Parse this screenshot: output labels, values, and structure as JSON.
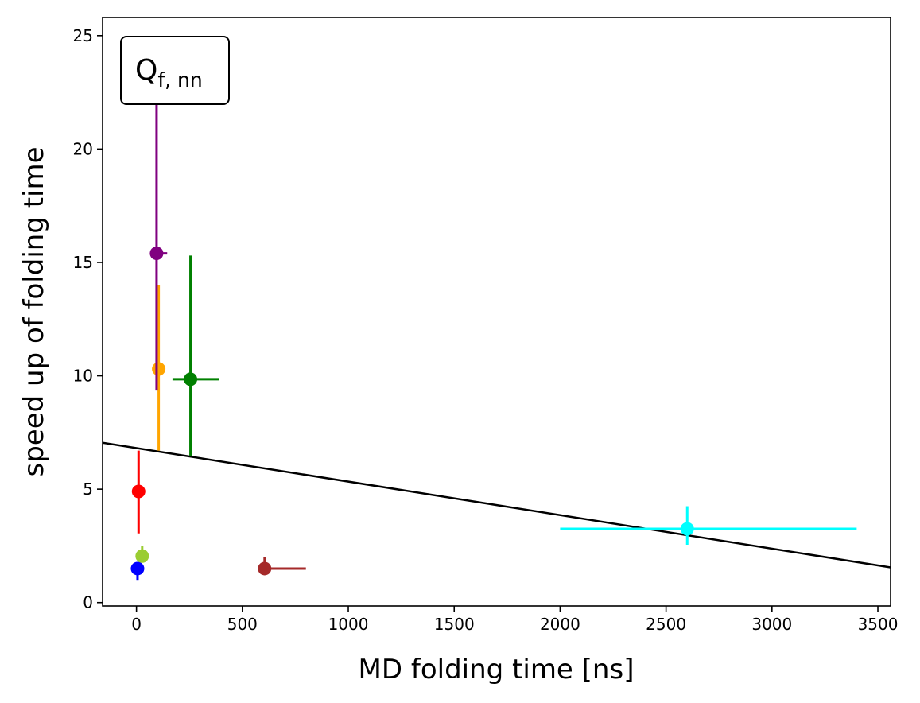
{
  "chart_data": {
    "type": "scatter",
    "title": "",
    "xlabel": "MD folding time [ns]",
    "ylabel": "speed up of folding time",
    "xlim": [
      -160,
      3560
    ],
    "ylim": [
      -0.15,
      25.8
    ],
    "xticks": [
      0,
      500,
      1000,
      1500,
      2000,
      2500,
      3000,
      3500
    ],
    "yticks": [
      0,
      5,
      10,
      15,
      20,
      25
    ],
    "grid": false,
    "legend": "none",
    "annotation": {
      "main": "Q",
      "sub": "f, nn",
      "position": "top-left"
    },
    "points": [
      {
        "color": "#0000ff",
        "x": 5,
        "y": 1.5,
        "xerr": [
          0,
          0
        ],
        "yerr": [
          0.5,
          0.2
        ]
      },
      {
        "color": "#9acd32",
        "x": 27,
        "y": 2.05,
        "xerr": [
          0,
          0
        ],
        "yerr": [
          0.05,
          0.45
        ]
      },
      {
        "color": "#ff0000",
        "x": 10,
        "y": 4.9,
        "xerr": [
          0,
          0
        ],
        "yerr": [
          1.85,
          1.8
        ]
      },
      {
        "color": "#ffa500",
        "x": 105,
        "y": 10.3,
        "xerr": [
          5,
          5
        ],
        "yerr": [
          3.6,
          3.7
        ]
      },
      {
        "color": "#800080",
        "x": 95,
        "y": 15.4,
        "xerr": [
          10,
          50
        ],
        "yerr": [
          6.05,
          7.1
        ]
      },
      {
        "color": "#008000",
        "x": 255,
        "y": 9.85,
        "xerr": [
          85,
          135
        ],
        "yerr": [
          3.4,
          5.45
        ]
      },
      {
        "color": "#a52a2a",
        "x": 605,
        "y": 1.5,
        "xerr": [
          0,
          195
        ],
        "yerr": [
          0.2,
          0.5
        ]
      },
      {
        "color": "#00ffff",
        "x": 2600,
        "y": 3.25,
        "xerr": [
          600,
          800
        ],
        "yerr": [
          0.7,
          1.0
        ]
      }
    ],
    "fit_line": {
      "color": "#000000",
      "x": [
        -160,
        3560
      ],
      "y": [
        7.05,
        1.55
      ]
    }
  }
}
